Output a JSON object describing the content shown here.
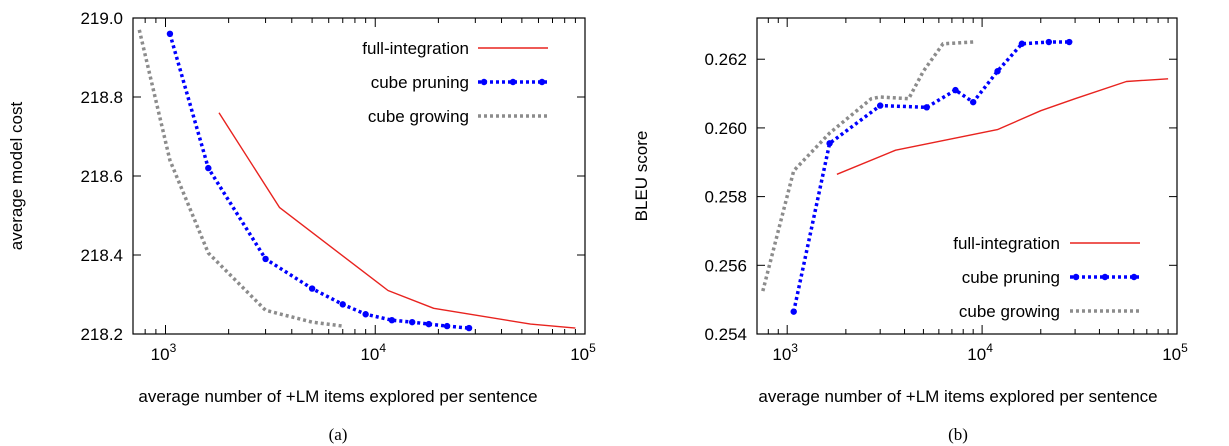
{
  "colors": {
    "full_integration": "#e8231f",
    "cube_pruning": "#0000ff",
    "cube_growing": "#8c8c8c"
  },
  "chart_data": [
    {
      "type": "line",
      "caption": "(a)",
      "xlabel": "average number of +LM items explored per sentence",
      "ylabel": "average model cost",
      "xscale": "log",
      "xlim": [
        700,
        100000
      ],
      "ylim": [
        218.2,
        219.0
      ],
      "x_ticks": [
        {
          "value": 1000,
          "base": "10",
          "exp": "3"
        },
        {
          "value": 10000,
          "base": "10",
          "exp": "4"
        },
        {
          "value": 100000,
          "base": "10",
          "exp": "5"
        }
      ],
      "y_ticks": [
        {
          "value": 218.2,
          "label": "218.2"
        },
        {
          "value": 218.4,
          "label": "218.4"
        },
        {
          "value": 218.6,
          "label": "218.6"
        },
        {
          "value": 218.8,
          "label": "218.8"
        },
        {
          "value": 219.0,
          "label": "219.0"
        }
      ],
      "legend_position": "top-right",
      "series": [
        {
          "name": "full-integration",
          "style": "solid",
          "color_key": "full_integration",
          "x": [
            1800,
            3500,
            11500,
            19000,
            55000,
            90000
          ],
          "y": [
            218.76,
            218.52,
            218.31,
            218.265,
            218.225,
            218.215
          ]
        },
        {
          "name": "cube pruning",
          "style": "dotted-points",
          "color_key": "cube_pruning",
          "x": [
            1050,
            1600,
            3000,
            5000,
            7000,
            9000,
            12000,
            15000,
            18000,
            22000,
            28000
          ],
          "y": [
            218.96,
            218.62,
            218.39,
            218.315,
            218.275,
            218.25,
            218.235,
            218.23,
            218.225,
            218.22,
            218.215
          ]
        },
        {
          "name": "cube growing",
          "style": "dotted",
          "color_key": "cube_growing",
          "x": [
            750,
            1050,
            1600,
            3000,
            5000,
            7000
          ],
          "y": [
            218.97,
            218.64,
            218.405,
            218.26,
            218.23,
            218.22
          ]
        }
      ]
    },
    {
      "type": "line",
      "caption": "(b)",
      "xlabel": "average number of +LM items explored per sentence",
      "ylabel": "BLEU score",
      "xscale": "log",
      "xlim": [
        700,
        100000
      ],
      "ylim": [
        0.254,
        0.2632
      ],
      "x_ticks": [
        {
          "value": 1000,
          "base": "10",
          "exp": "3"
        },
        {
          "value": 10000,
          "base": "10",
          "exp": "4"
        },
        {
          "value": 100000,
          "base": "10",
          "exp": "5"
        }
      ],
      "y_ticks": [
        {
          "value": 0.254,
          "label": "0.254"
        },
        {
          "value": 0.256,
          "label": "0.256"
        },
        {
          "value": 0.258,
          "label": "0.258"
        },
        {
          "value": 0.26,
          "label": "0.260"
        },
        {
          "value": 0.262,
          "label": "0.262"
        }
      ],
      "legend_position": "bottom-right",
      "series": [
        {
          "name": "full-integration",
          "style": "solid",
          "color_key": "full_integration",
          "x": [
            1800,
            3600,
            12000,
            20000,
            30000,
            55000,
            90000
          ],
          "y": [
            0.25865,
            0.25935,
            0.25995,
            0.2605,
            0.26085,
            0.26135,
            0.26143
          ]
        },
        {
          "name": "cube pruning",
          "style": "dotted-points",
          "color_key": "cube_pruning",
          "x": [
            1080,
            1650,
            3000,
            5200,
            7300,
            9000,
            12000,
            16000,
            22000,
            28000
          ],
          "y": [
            0.25465,
            0.25955,
            0.26065,
            0.2606,
            0.2611,
            0.26075,
            0.26165,
            0.26245,
            0.2625,
            0.2625
          ],
          "marker_indices": [
            0,
            1,
            2,
            3,
            4,
            5,
            6,
            7,
            8,
            9
          ]
        },
        {
          "name": "cube growing",
          "style": "dotted",
          "color_key": "cube_growing",
          "x": [
            750,
            1080,
            1650,
            2700,
            3000,
            4200,
            5000,
            6300,
            9000
          ],
          "y": [
            0.25525,
            0.25875,
            0.25985,
            0.26085,
            0.2609,
            0.26085,
            0.26165,
            0.26245,
            0.2625
          ]
        }
      ]
    }
  ]
}
